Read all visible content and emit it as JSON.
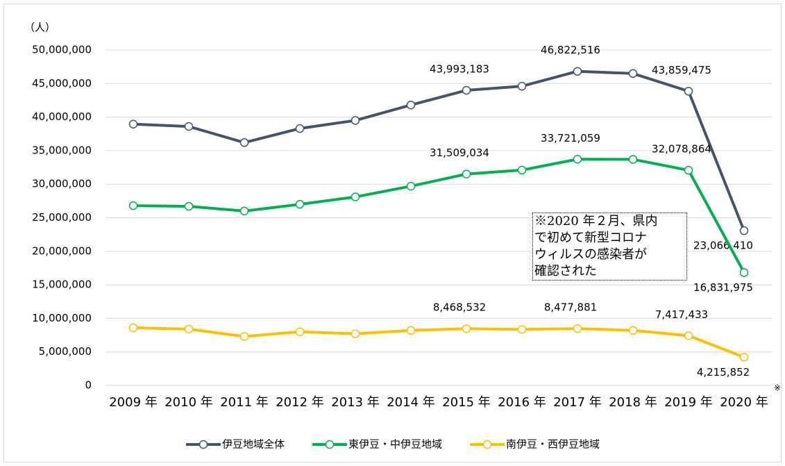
{
  "chart_data": {
    "type": "line",
    "y_unit": "（人）",
    "categories": [
      "2009 年",
      "2010 年",
      "2011 年",
      "2012 年",
      "2013 年",
      "2014 年",
      "2015 年",
      "2016 年",
      "2017 年",
      "2018 年",
      "2019 年",
      "2020 年"
    ],
    "category_footnote": "※",
    "series": [
      {
        "name": "伊豆地域全体",
        "color": "#44546a",
        "values": [
          38950000,
          38600000,
          36200000,
          38300000,
          39500000,
          41800000,
          43993183,
          44600000,
          46822516,
          46500000,
          43859475,
          23066410
        ],
        "value_labels": [
          null,
          null,
          null,
          null,
          null,
          null,
          "43,993,183",
          null,
          "46,822,516",
          null,
          "43,859,475",
          "23,066,410"
        ]
      },
      {
        "name": "東伊豆・中伊豆地域",
        "color": "#00b050",
        "values": [
          26800000,
          26700000,
          26000000,
          27000000,
          28100000,
          29700000,
          31509034,
          32100000,
          33721059,
          33700000,
          32078864,
          16831975
        ],
        "value_labels": [
          null,
          null,
          null,
          null,
          null,
          null,
          "31,509,034",
          null,
          "33,721,059",
          null,
          "32,078,864",
          "16,831,975"
        ]
      },
      {
        "name": "南伊豆・西伊豆地域",
        "color": "#ffc000",
        "values": [
          8600000,
          8400000,
          7300000,
          8000000,
          7700000,
          8200000,
          8468532,
          8350000,
          8477881,
          8200000,
          7417433,
          4215852
        ],
        "value_labels": [
          null,
          null,
          null,
          null,
          null,
          null,
          "8,468,532",
          null,
          "8,477,881",
          null,
          "7,417,433",
          "4,215,852"
        ]
      }
    ],
    "highlight_label_color": "#ff0000",
    "ylim": [
      0,
      50000000
    ],
    "yticks": [
      0,
      {
        "value": 5000000,
        "label": "5,000,000"
      },
      {
        "value": 10000000,
        "label": "10,000,000"
      },
      {
        "value": 15000000,
        "label": "15,000,000"
      },
      {
        "value": 20000000,
        "label": "20,000,000"
      },
      {
        "value": 25000000,
        "label": "25,000,000"
      },
      {
        "value": 30000000,
        "label": "30,000,000"
      },
      {
        "value": 35000000,
        "label": "35,000,000"
      },
      {
        "value": 40000000,
        "label": "40,000,000"
      },
      {
        "value": 45000000,
        "label": "45,000,000"
      },
      {
        "value": 50000000,
        "label": "50,000,000"
      }
    ],
    "grid": true,
    "legend": "bottom",
    "annotation": [
      "※2020 年２月、県内",
      "で初めて新型コロナ",
      "ウィルスの感染者が",
      "確認された"
    ]
  }
}
